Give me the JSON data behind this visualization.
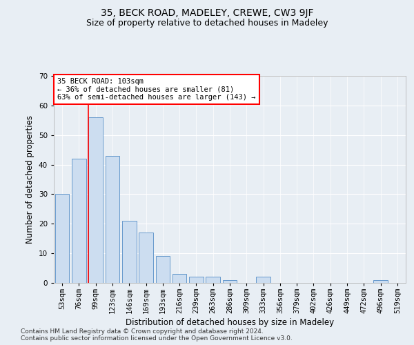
{
  "title": "35, BECK ROAD, MADELEY, CREWE, CW3 9JF",
  "subtitle": "Size of property relative to detached houses in Madeley",
  "xlabel": "Distribution of detached houses by size in Madeley",
  "ylabel": "Number of detached properties",
  "categories": [
    "53sqm",
    "76sqm",
    "99sqm",
    "123sqm",
    "146sqm",
    "169sqm",
    "193sqm",
    "216sqm",
    "239sqm",
    "263sqm",
    "286sqm",
    "309sqm",
    "333sqm",
    "356sqm",
    "379sqm",
    "402sqm",
    "426sqm",
    "449sqm",
    "472sqm",
    "496sqm",
    "519sqm"
  ],
  "values": [
    30,
    42,
    56,
    43,
    21,
    17,
    9,
    3,
    2,
    2,
    1,
    0,
    2,
    0,
    0,
    0,
    0,
    0,
    0,
    1,
    0
  ],
  "bar_color": "#ccddf0",
  "bar_edge_color": "#6699cc",
  "red_line_index": 2,
  "annotation_title": "35 BECK ROAD: 103sqm",
  "annotation_line1": "← 36% of detached houses are smaller (81)",
  "annotation_line2": "63% of semi-detached houses are larger (143) →",
  "ylim": [
    0,
    70
  ],
  "yticks": [
    0,
    10,
    20,
    30,
    40,
    50,
    60,
    70
  ],
  "bg_color": "#e8eef4",
  "plot_bg_color": "#e8eef4",
  "grid_color": "#ffffff",
  "footer_line1": "Contains HM Land Registry data © Crown copyright and database right 2024.",
  "footer_line2": "Contains public sector information licensed under the Open Government Licence v3.0.",
  "title_fontsize": 10,
  "subtitle_fontsize": 9,
  "xlabel_fontsize": 8.5,
  "ylabel_fontsize": 8.5,
  "ann_fontsize": 7.5,
  "footer_fontsize": 6.5,
  "tick_fontsize": 7.5
}
